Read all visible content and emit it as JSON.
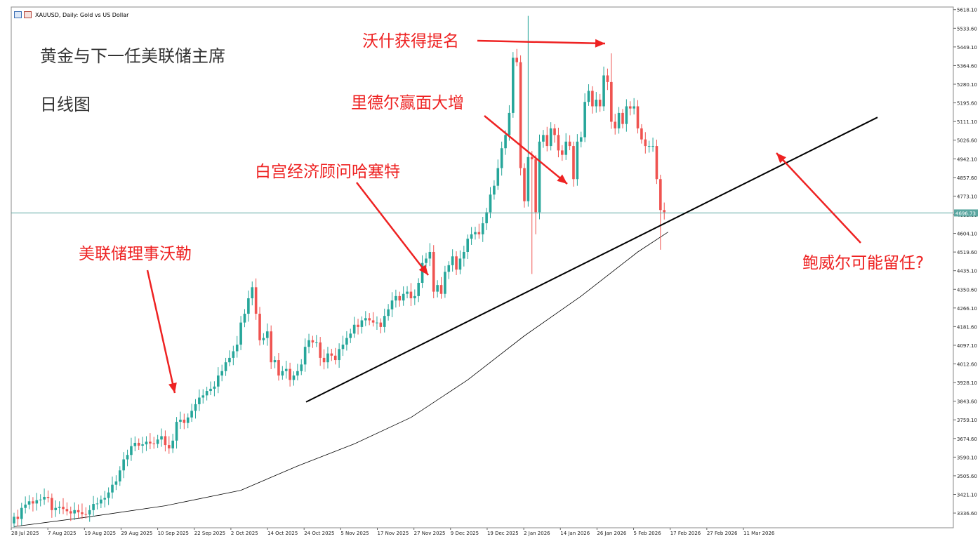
{
  "header": {
    "symbol_label": "XAUUSD, Daily:  Gold vs US Dollar"
  },
  "titles": {
    "main": "黄金与下一任美联储主席",
    "sub": "日线图"
  },
  "annotations": {
    "waller": "美联储理事沃勒",
    "hassett": "白宫经济顾问哈塞特",
    "rieder": "里德尔赢面大增",
    "warsh": "沃什获得提名",
    "powell": "鲍威尔可能留任?"
  },
  "colors": {
    "bull": "#26a69a",
    "bear": "#ef5350",
    "price_line": "#5aa6a0",
    "annotation": "#ee2222",
    "moving_average": "#000000"
  },
  "chart_data": {
    "type": "candlestick",
    "symbol": "XAUUSD",
    "timeframe": "Daily",
    "ylim": [
      3270,
      5630
    ],
    "y_ticks": [
      "5618.10",
      "5533.60",
      "5449.10",
      "5364.60",
      "5280.10",
      "5195.60",
      "5111.10",
      "5026.60",
      "4942.10",
      "4857.60",
      "4773.10",
      "4688.60",
      "4604.10",
      "4519.60",
      "4435.10",
      "4350.60",
      "4266.10",
      "4181.60",
      "4097.10",
      "4012.60",
      "3928.10",
      "3843.60",
      "3759.10",
      "3674.60",
      "3590.10",
      "3505.60",
      "3421.10",
      "3336.60"
    ],
    "x_ticks": [
      "28 Jul 2025",
      "7 Aug 2025",
      "19 Aug 2025",
      "29 Aug 2025",
      "10 Sep 2025",
      "22 Sep 2025",
      "2 Oct 2025",
      "14 Oct 2025",
      "24 Oct 2025",
      "5 Nov 2025",
      "17 Nov 2025",
      "27 Nov 2025",
      "9 Dec 2025",
      "19 Dec 2025",
      "2 Jan 2026",
      "14 Jan 2026",
      "26 Jan 2026",
      "5 Feb 2026",
      "17 Feb 2026",
      "27 Feb 2026",
      "11 Mar 2026"
    ],
    "current_price": "4696.73",
    "closes": [
      3320,
      3310,
      3360,
      3375,
      3390,
      3380,
      3395,
      3398,
      3410,
      3405,
      3350,
      3360,
      3365,
      3355,
      3345,
      3335,
      3350,
      3340,
      3332,
      3330,
      3350,
      3378,
      3380,
      3398,
      3405,
      3430,
      3465,
      3480,
      3530,
      3580,
      3600,
      3640,
      3655,
      3642,
      3648,
      3660,
      3652,
      3650,
      3670,
      3685,
      3645,
      3630,
      3665,
      3750,
      3760,
      3745,
      3770,
      3800,
      3830,
      3860,
      3870,
      3890,
      3900,
      3910,
      3960,
      3980,
      4020,
      4040,
      4070,
      4100,
      4200,
      4240,
      4310,
      4360,
      4240,
      4120,
      4130,
      4160,
      4020,
      4030,
      3960,
      3980,
      3990,
      3940,
      3960,
      3980,
      4010,
      4090,
      4120,
      4110,
      4110,
      4040,
      4020,
      4060,
      4050,
      4030,
      4080,
      4100,
      4130,
      4150,
      4190,
      4180,
      4210,
      4220,
      4210,
      4200,
      4200,
      4180,
      4230,
      4260,
      4300,
      4320,
      4300,
      4330,
      4340,
      4310,
      4320,
      4380,
      4470,
      4490,
      4520,
      4340,
      4370,
      4330,
      4430,
      4460,
      4500,
      4440,
      4490,
      4520,
      4580,
      4600,
      4610,
      4600,
      4650,
      4700,
      4780,
      4820,
      4900,
      4990,
      5050,
      5150,
      5400,
      5380,
      4900,
      4750,
      4950,
      4940,
      4700,
      5020,
      5050,
      5000,
      5080,
      5050,
      4980,
      4960,
      5020,
      5000,
      4850,
      5020,
      5040,
      5200,
      5250,
      5180,
      5210,
      5180,
      5320,
      5290,
      5110,
      5080,
      5150,
      5100,
      5180,
      5170,
      5180,
      5080,
      5030,
      5000,
      5000,
      5000,
      4850,
      4710,
      4700
    ],
    "moving_average_points": [
      [
        0,
        3275
      ],
      [
        20,
        3320
      ],
      [
        40,
        3370
      ],
      [
        60,
        3440
      ],
      [
        75,
        3550
      ],
      [
        90,
        3650
      ],
      [
        105,
        3770
      ],
      [
        120,
        3940
      ],
      [
        135,
        4140
      ],
      [
        150,
        4320
      ],
      [
        165,
        4520
      ],
      [
        173,
        4610
      ]
    ],
    "trendline": [
      [
        3840,
        "24 Oct 2025"
      ],
      [
        5130,
        "beyond 11 Mar 2026"
      ]
    ],
    "grid": false,
    "legend": "none"
  }
}
